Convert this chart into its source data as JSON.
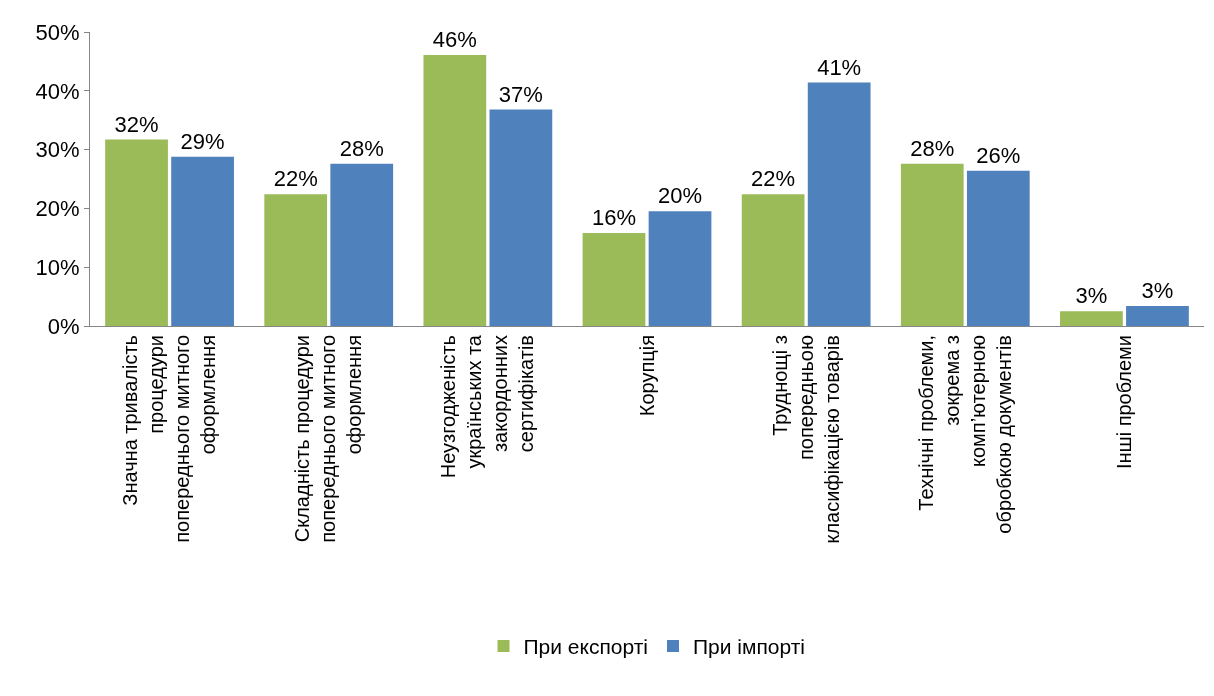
{
  "chart_data": {
    "type": "bar",
    "categories": [
      "Значна тривалість\nпроцедури\nпопереднього митного\nоформлення",
      "Складність процедури\nпопереднього митного\nоформлення",
      "Неузгодженість\nукраїнських та\nзакордонних\nсертифікатів",
      "Корупція",
      "Труднощі з\nпопередньою\nкласифікацією товарів",
      "Технічні проблеми,\nзокрема з\nкомп’ютерною\nобробкою документів",
      "Інші проблеми"
    ],
    "series": [
      {
        "name": "При експорті",
        "color": "#9bbb59",
        "values": [
          31.7,
          22.4,
          46.1,
          15.8,
          22.4,
          27.6,
          2.5
        ],
        "value_labels": [
          "32%",
          "22%",
          "46%",
          "16%",
          "22%",
          "28%",
          "3%"
        ]
      },
      {
        "name": "При імпорті",
        "color": "#4f81bd",
        "values": [
          28.8,
          27.6,
          36.8,
          19.5,
          41.4,
          26.4,
          3.4
        ],
        "value_labels": [
          "29%",
          "28%",
          "37%",
          "20%",
          "41%",
          "26%",
          "3%"
        ]
      }
    ],
    "ylim": [
      0,
      50
    ],
    "yticks": [
      {
        "value": 0,
        "label": "0%"
      },
      {
        "value": 10,
        "label": "10%"
      },
      {
        "value": 20,
        "label": "20%"
      },
      {
        "value": 30,
        "label": "30%"
      },
      {
        "value": 40,
        "label": "40%"
      },
      {
        "value": 50,
        "label": "50%"
      }
    ],
    "legend": "bottom"
  }
}
